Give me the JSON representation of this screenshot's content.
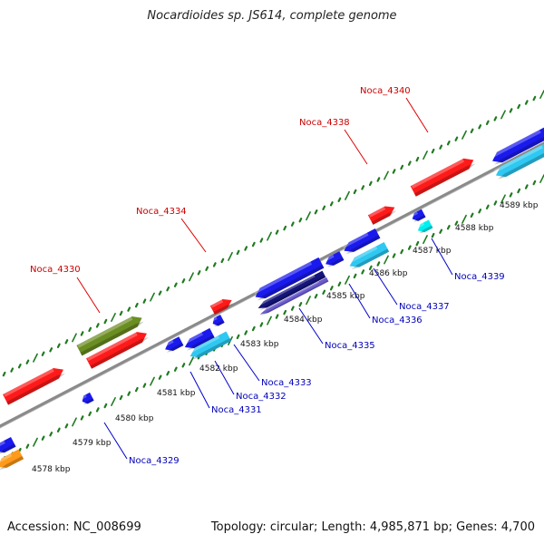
{
  "title": "Nocardioides sp. JS614, complete genome",
  "footer": {
    "accession": "Accession: NC_008699",
    "summary": "Topology: circular; Length: 4,985,871 bp; Genes: 4,700"
  },
  "colors": {
    "backbone": "#8a8a8a",
    "ticks": "#1f7a1f",
    "label_forward": "#cc0000",
    "label_reverse": "#0000bb",
    "leader_forward": "#e00000",
    "leader_reverse": "#0000cc",
    "red": "#ff1a1a",
    "olive": "#6b8e23",
    "blue": "#1a1aee",
    "lightblue": "#2ec8f2",
    "darkblue": "#14147a",
    "purple": "#6a5acd",
    "cyan": "#00f0f0",
    "orange": "#ff9a1a"
  },
  "scale_labels": [
    {
      "text": "4578 kbp",
      "kbp": 4578
    },
    {
      "text": "4579 kbp",
      "kbp": 4579
    },
    {
      "text": "4580 kbp",
      "kbp": 4580
    },
    {
      "text": "4581 kbp",
      "kbp": 4581
    },
    {
      "text": "4582 kbp",
      "kbp": 4582
    },
    {
      "text": "4583 kbp",
      "kbp": 4583
    },
    {
      "text": "4584 kbp",
      "kbp": 4584
    },
    {
      "text": "4585 kbp",
      "kbp": 4585
    },
    {
      "text": "4586 kbp",
      "kbp": 4586
    },
    {
      "text": "4587 kbp",
      "kbp": 4587
    },
    {
      "text": "4588 kbp",
      "kbp": 4588
    },
    {
      "text": "4589 kbp",
      "kbp": 4589
    }
  ],
  "gene_labels": [
    {
      "text": "Noca_4329",
      "strand": "reverse"
    },
    {
      "text": "Noca_4330",
      "strand": "forward"
    },
    {
      "text": "Noca_4331",
      "strand": "reverse"
    },
    {
      "text": "Noca_4332",
      "strand": "reverse"
    },
    {
      "text": "Noca_4333",
      "strand": "reverse"
    },
    {
      "text": "Noca_4334",
      "strand": "forward"
    },
    {
      "text": "Noca_4335",
      "strand": "reverse"
    },
    {
      "text": "Noca_4336",
      "strand": "reverse"
    },
    {
      "text": "Noca_4337",
      "strand": "reverse"
    },
    {
      "text": "Noca_4338",
      "strand": "forward"
    },
    {
      "text": "Noca_4339",
      "strand": "reverse"
    },
    {
      "text": "Noca_4340",
      "strand": "forward"
    }
  ],
  "features": [
    {
      "name": "gene-forward-red-a",
      "color": "red",
      "strand": "forward"
    },
    {
      "name": "gene-forward-olive",
      "color": "olive",
      "strand": "forward"
    },
    {
      "name": "gene-forward-red-b",
      "color": "red",
      "strand": "forward"
    },
    {
      "name": "gene-forward-red-c",
      "color": "red",
      "strand": "forward"
    },
    {
      "name": "gene-forward-red-d",
      "color": "red",
      "strand": "forward"
    },
    {
      "name": "gene-forward-red-e",
      "color": "red",
      "strand": "forward"
    },
    {
      "name": "gene-reverse-blue-a",
      "color": "blue",
      "strand": "reverse"
    },
    {
      "name": "gene-reverse-orange",
      "color": "orange",
      "strand": "reverse"
    },
    {
      "name": "gene-reverse-blue-b",
      "color": "blue",
      "strand": "reverse"
    },
    {
      "name": "gene-reverse-blue-c",
      "color": "blue",
      "strand": "reverse"
    },
    {
      "name": "gene-reverse-blue-d",
      "color": "blue",
      "strand": "reverse"
    },
    {
      "name": "gene-reverse-blue-e",
      "color": "blue",
      "strand": "reverse"
    },
    {
      "name": "gene-reverse-lightblue-a",
      "color": "lightblue",
      "strand": "reverse"
    },
    {
      "name": "gene-reverse-blue-f",
      "color": "blue",
      "strand": "reverse"
    },
    {
      "name": "gene-reverse-darkblue",
      "color": "darkblue",
      "strand": "reverse"
    },
    {
      "name": "gene-reverse-purple",
      "color": "purple",
      "strand": "reverse"
    },
    {
      "name": "gene-reverse-blue-g",
      "color": "blue",
      "strand": "reverse"
    },
    {
      "name": "gene-reverse-blue-h",
      "color": "blue",
      "strand": "reverse"
    },
    {
      "name": "gene-reverse-lightblue-b",
      "color": "lightblue",
      "strand": "reverse"
    },
    {
      "name": "gene-reverse-blue-i",
      "color": "blue",
      "strand": "reverse"
    },
    {
      "name": "gene-reverse-cyan",
      "color": "cyan",
      "strand": "reverse"
    },
    {
      "name": "gene-reverse-blue-j",
      "color": "blue",
      "strand": "reverse"
    },
    {
      "name": "gene-reverse-lightblue-c",
      "color": "lightblue",
      "strand": "reverse"
    }
  ]
}
